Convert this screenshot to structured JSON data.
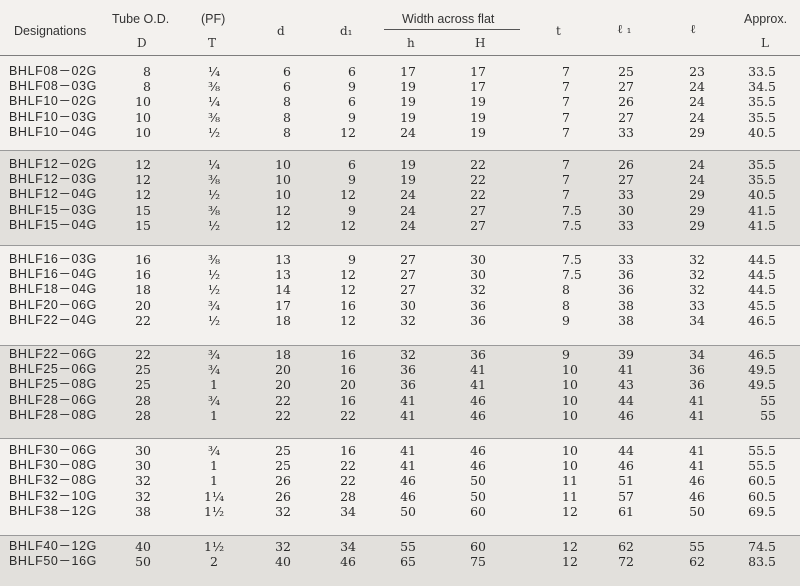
{
  "headers": {
    "designations": "Designations",
    "tube_od": "Tube O.D.",
    "tube_od_sym": "D",
    "pf": "(PF)",
    "pf_sym": "T",
    "d": "d",
    "d1": "d₁",
    "waf": "Width across flat",
    "waf_h": "h",
    "waf_H": "H",
    "t": "t",
    "l1": "ℓ ₁",
    "l": "ℓ",
    "approx": "Approx.",
    "approx_sym": "L"
  },
  "groups": [
    [
      [
        "BHLF08－02G",
        "8",
        "¼",
        "6",
        "6",
        "17",
        "17",
        "7",
        "25",
        "23",
        "33.5"
      ],
      [
        "BHLF08－03G",
        "8",
        "⅜",
        "6",
        "9",
        "19",
        "17",
        "7",
        "27",
        "24",
        "34.5"
      ],
      [
        "BHLF10－02G",
        "10",
        "¼",
        "8",
        "6",
        "19",
        "19",
        "7",
        "26",
        "24",
        "35.5"
      ],
      [
        "BHLF10－03G",
        "10",
        "⅜",
        "8",
        "9",
        "19",
        "19",
        "7",
        "27",
        "24",
        "35.5"
      ],
      [
        "BHLF10－04G",
        "10",
        "½",
        "8",
        "12",
        "24",
        "19",
        "7",
        "33",
        "29",
        "40.5"
      ]
    ],
    [
      [
        "BHLF12－02G",
        "12",
        "¼",
        "10",
        "6",
        "19",
        "22",
        "7",
        "26",
        "24",
        "35.5"
      ],
      [
        "BHLF12－03G",
        "12",
        "⅜",
        "10",
        "9",
        "19",
        "22",
        "7",
        "27",
        "24",
        "35.5"
      ],
      [
        "BHLF12－04G",
        "12",
        "½",
        "10",
        "12",
        "24",
        "22",
        "7",
        "33",
        "29",
        "40.5"
      ],
      [
        "BHLF15－03G",
        "15",
        "⅜",
        "12",
        "9",
        "24",
        "27",
        "7.5",
        "30",
        "29",
        "41.5"
      ],
      [
        "BHLF15－04G",
        "15",
        "½",
        "12",
        "12",
        "24",
        "27",
        "7.5",
        "33",
        "29",
        "41.5"
      ]
    ],
    [
      [
        "BHLF16－03G",
        "16",
        "⅜",
        "13",
        "9",
        "27",
        "30",
        "7.5",
        "33",
        "32",
        "44.5"
      ],
      [
        "BHLF16－04G",
        "16",
        "½",
        "13",
        "12",
        "27",
        "30",
        "7.5",
        "36",
        "32",
        "44.5"
      ],
      [
        "BHLF18－04G",
        "18",
        "½",
        "14",
        "12",
        "27",
        "32",
        "8",
        "36",
        "32",
        "44.5"
      ],
      [
        "BHLF20－06G",
        "20",
        "¾",
        "17",
        "16",
        "30",
        "36",
        "8",
        "38",
        "33",
        "45.5"
      ],
      [
        "BHLF22－04G",
        "22",
        "½",
        "18",
        "12",
        "32",
        "36",
        "9",
        "38",
        "34",
        "46.5"
      ]
    ],
    [
      [
        "BHLF22－06G",
        "22",
        "¾",
        "18",
        "16",
        "32",
        "36",
        "9",
        "39",
        "34",
        "46.5"
      ],
      [
        "BHLF25－06G",
        "25",
        "¾",
        "20",
        "16",
        "36",
        "41",
        "10",
        "41",
        "36",
        "49.5"
      ],
      [
        "BHLF25－08G",
        "25",
        "1",
        "20",
        "20",
        "36",
        "41",
        "10",
        "43",
        "36",
        "49.5"
      ],
      [
        "BHLF28－06G",
        "28",
        "¾",
        "22",
        "16",
        "41",
        "46",
        "10",
        "44",
        "41",
        "55"
      ],
      [
        "BHLF28－08G",
        "28",
        "1",
        "22",
        "22",
        "41",
        "46",
        "10",
        "46",
        "41",
        "55"
      ]
    ],
    [
      [
        "BHLF30－06G",
        "30",
        "¾",
        "25",
        "16",
        "41",
        "46",
        "10",
        "44",
        "41",
        "55.5"
      ],
      [
        "BHLF30－08G",
        "30",
        "1",
        "25",
        "22",
        "41",
        "46",
        "10",
        "46",
        "41",
        "55.5"
      ],
      [
        "BHLF32－08G",
        "32",
        "1",
        "26",
        "22",
        "46",
        "50",
        "11",
        "51",
        "46",
        "60.5"
      ],
      [
        "BHLF32－10G",
        "32",
        "1¼",
        "26",
        "28",
        "46",
        "50",
        "11",
        "57",
        "46",
        "60.5"
      ],
      [
        "BHLF38－12G",
        "38",
        "1½",
        "32",
        "34",
        "50",
        "60",
        "12",
        "61",
        "50",
        "69.5"
      ]
    ],
    [
      [
        "BHLF40－12G",
        "40",
        "1½",
        "32",
        "34",
        "55",
        "60",
        "12",
        "62",
        "55",
        "74.5"
      ],
      [
        "BHLF50－16G",
        "50",
        "2",
        "40",
        "46",
        "65",
        "75",
        "12",
        "72",
        "62",
        "83.5"
      ]
    ]
  ],
  "colors": {
    "band": "#e2e0dc",
    "page": "#f3f1ee"
  }
}
